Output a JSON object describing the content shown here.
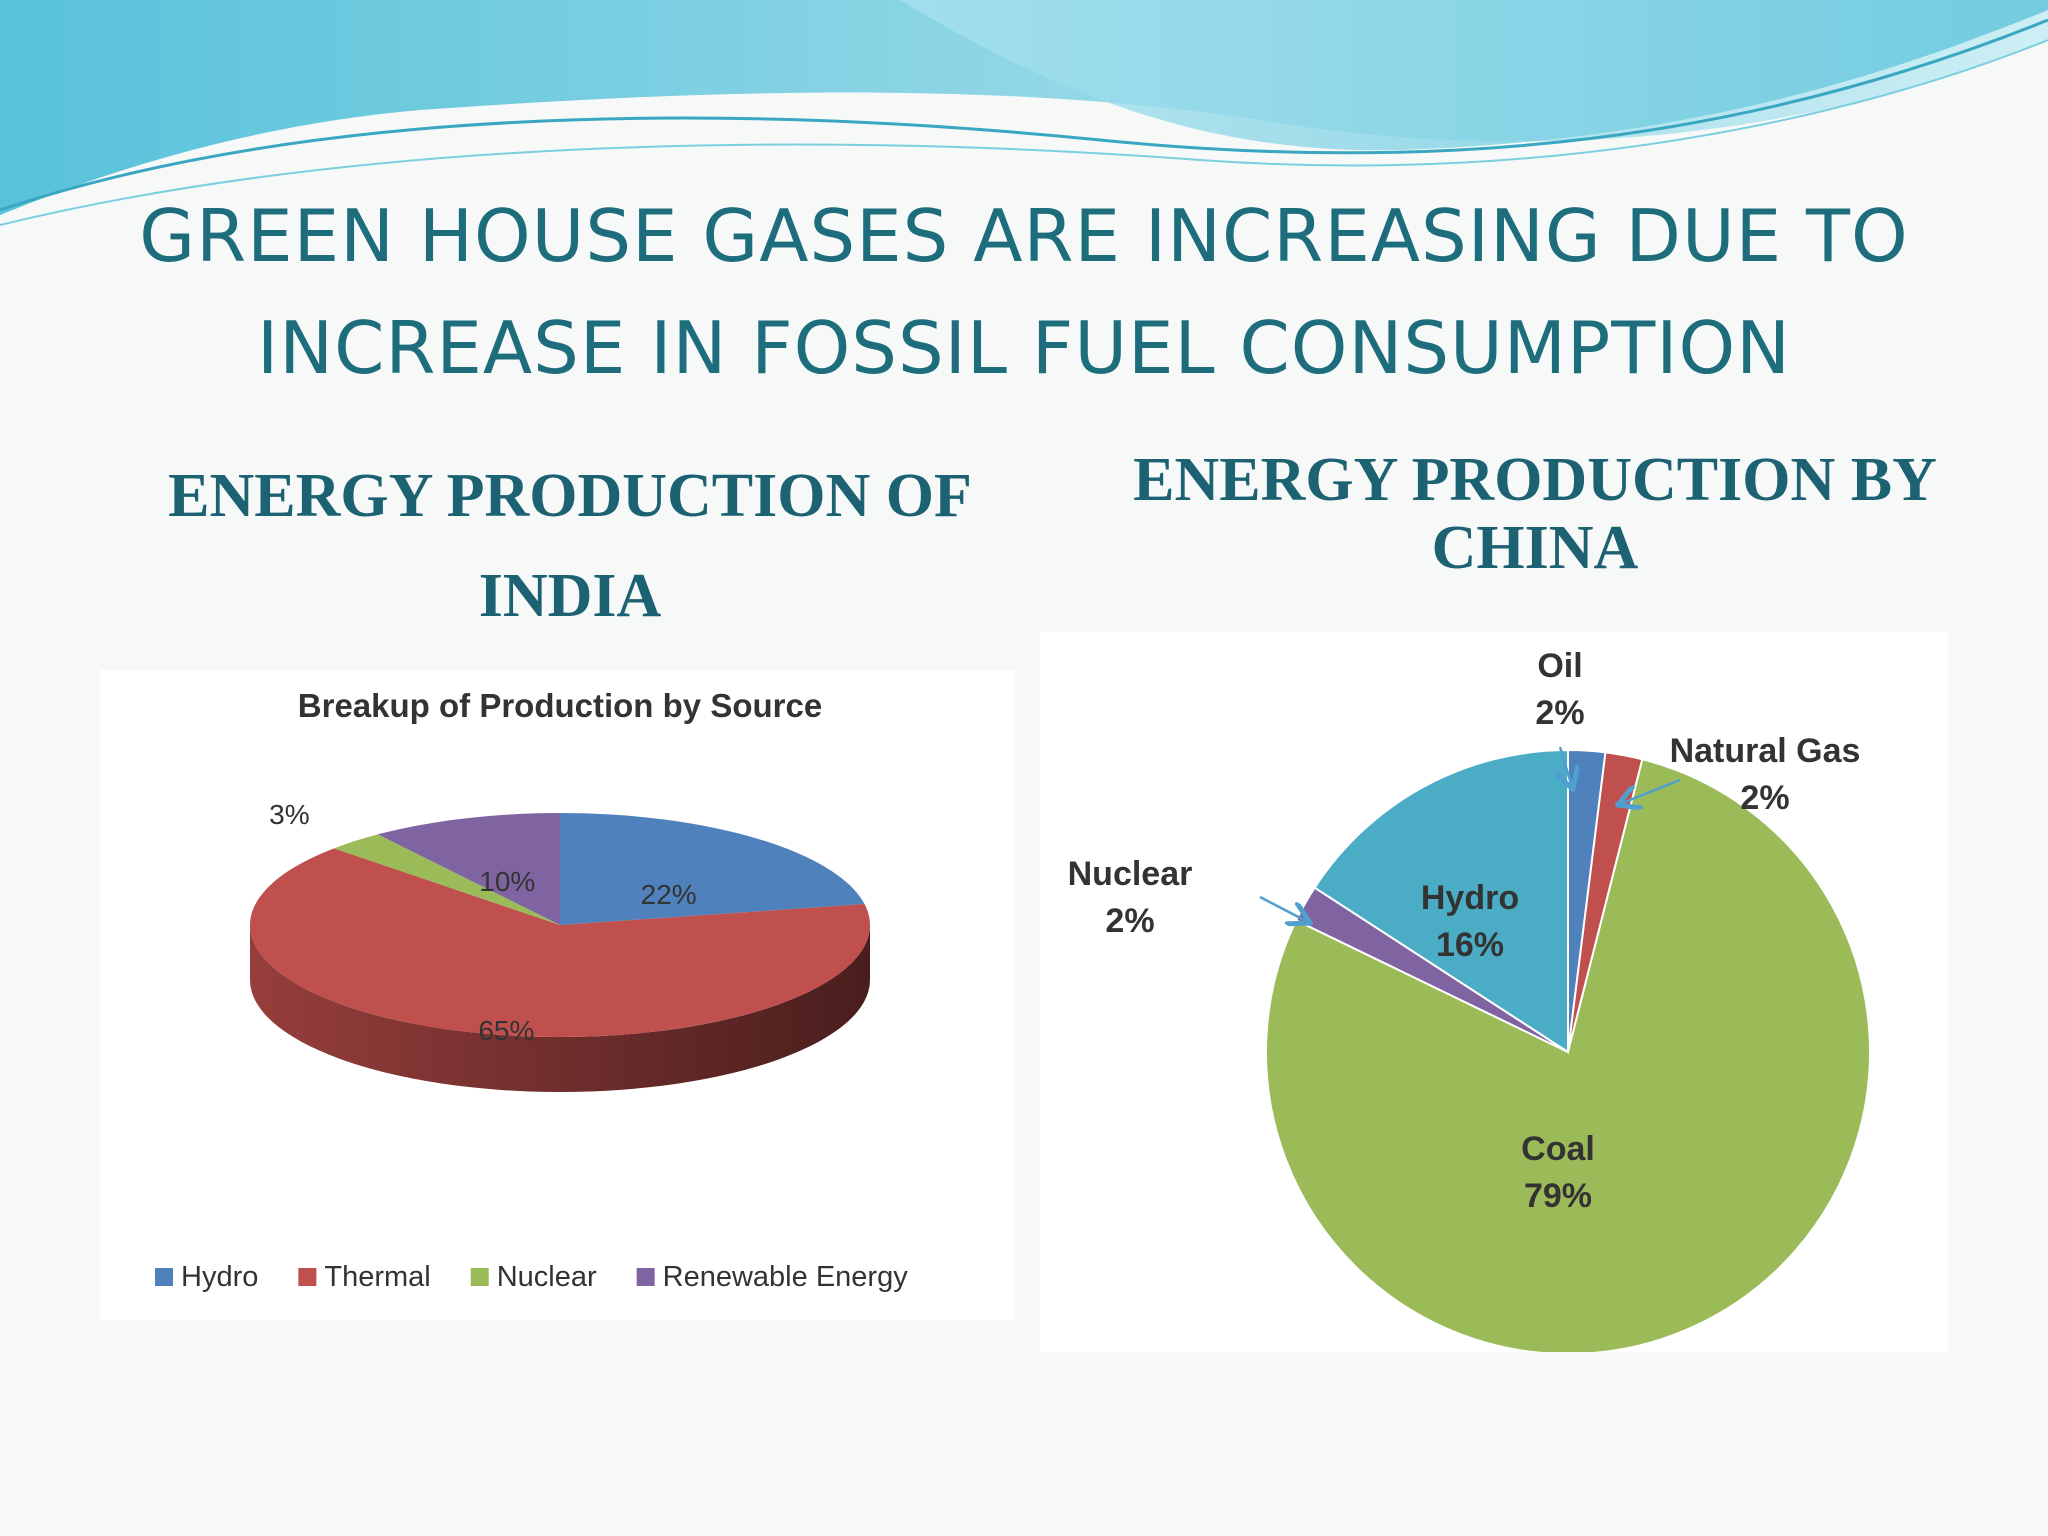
{
  "slide": {
    "title_line1": "GREEN HOUSE GASES ARE INCREASING DUE TO",
    "title_line2": "INCREASE IN FOSSIL FUEL CONSUMPTION",
    "left_heading_line1": "ENERGY PRODUCTION OF",
    "left_heading_line2": "INDIA",
    "right_heading_line1": "ENERGY PRODUCTION BY",
    "right_heading_line2": "CHINA"
  },
  "colors": {
    "title": "#1d6d7c",
    "heading": "#1c6272",
    "wave_light": "#bfe6ef",
    "wave_dark": "#4fb9d3"
  },
  "chart_data": [
    {
      "type": "pie",
      "style": "3d",
      "title": "Breakup of Production by Source",
      "legend_placement": "bottom",
      "slices": [
        {
          "name": "Hydro",
          "value": 22,
          "label": "22%",
          "color": "#4f81bd"
        },
        {
          "name": "Thermal",
          "value": 65,
          "label": "65%",
          "color": "#c0504d"
        },
        {
          "name": "Nuclear",
          "value": 3,
          "label": "3%",
          "color": "#9bbb59"
        },
        {
          "name": "Renewable Energy",
          "value": 10,
          "label": "10%",
          "color": "#8064a2"
        }
      ]
    },
    {
      "type": "pie",
      "title": "",
      "legend_placement": "none",
      "slices": [
        {
          "name": "Oil",
          "value": 2,
          "label": "2%",
          "color": "#4f81bd"
        },
        {
          "name": "Natural Gas",
          "value": 2,
          "label": "2%",
          "color": "#c0504d"
        },
        {
          "name": "Coal",
          "value": 79,
          "label": "79%",
          "color": "#9bbb59"
        },
        {
          "name": "Nuclear",
          "value": 2,
          "label": "2%",
          "color": "#8064a2"
        },
        {
          "name": "Hydro",
          "value": 16,
          "label": "16%",
          "color": "#4bacc6"
        }
      ]
    }
  ]
}
